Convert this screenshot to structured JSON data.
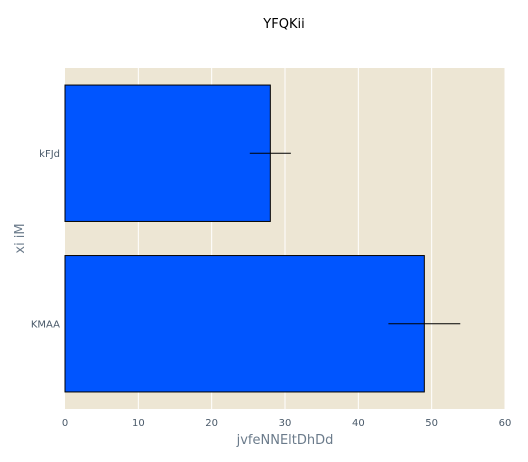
{
  "chart_data": {
    "type": "bar",
    "orientation": "horizontal",
    "title": "YFQKii",
    "xlabel": "jvfeNNEltDhDd",
    "ylabel": "xi iM",
    "categories": [
      "KMAA",
      "kFJd"
    ],
    "series": [
      {
        "values": [
          49,
          28
        ],
        "error": [
          4.9,
          2.8
        ]
      }
    ],
    "xlim": [
      0,
      60
    ],
    "xticks": [
      0,
      10,
      20,
      30,
      40,
      50,
      60
    ],
    "grid": true,
    "legend": "none",
    "colors": {
      "bar_fill": "#0055ff",
      "bar_stroke": "#000000",
      "plot_background": "#ede6d4",
      "grid": "#ffffff",
      "error_bar": "#000000"
    }
  }
}
